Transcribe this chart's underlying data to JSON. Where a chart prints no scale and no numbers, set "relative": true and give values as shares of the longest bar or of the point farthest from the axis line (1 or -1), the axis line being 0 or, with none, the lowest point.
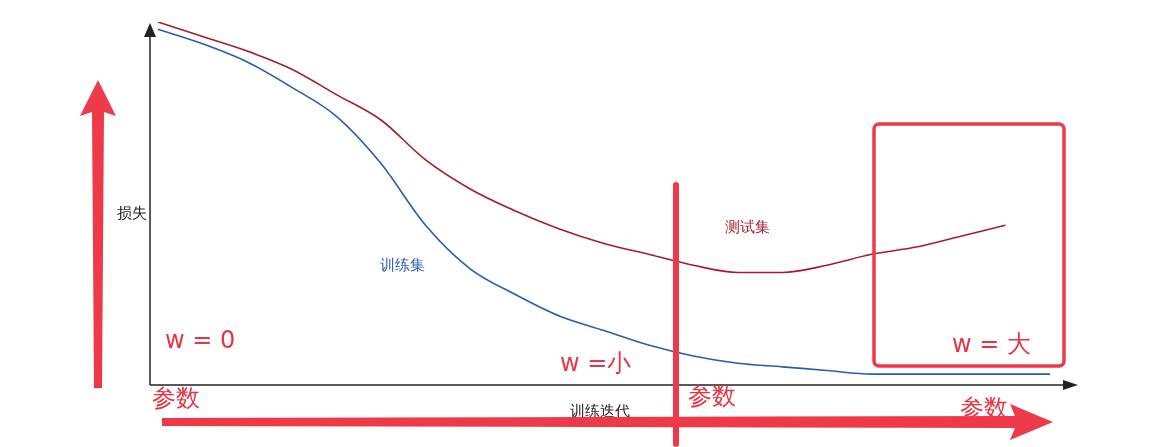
{
  "chart_data": {
    "type": "line",
    "relative": true,
    "xlabel": "训练迭代",
    "ylabel": "损失",
    "categories": [
      null,
      null,
      null,
      null,
      null,
      null,
      null,
      null,
      null,
      null,
      null,
      null,
      null,
      null,
      null,
      null,
      null,
      null,
      null,
      null,
      null
    ],
    "series": [
      {
        "name": "测试集",
        "color": "#a51d2d",
        "values": [
          1,
          0.96,
          0.92,
          0.87,
          0.8,
          0.73,
          0.62,
          0.54,
          0.48,
          0.43,
          0.39,
          0.36,
          0.33,
          0.31,
          0.31,
          0.33,
          0.36,
          0.38,
          0.41,
          0.44,
          null
        ]
      },
      {
        "name": "训练集",
        "color": "#2a5db0",
        "values": [
          0.98,
          0.94,
          0.89,
          0.82,
          0.74,
          0.61,
          0.44,
          0.32,
          0.25,
          0.19,
          0.15,
          0.11,
          0.08,
          0.06,
          0.05,
          0.04,
          0.03,
          0.03,
          0.03,
          0.03,
          0.03
        ]
      }
    ],
    "annotations": [
      "w = 0",
      "参数",
      "w =小",
      "参数",
      "w = 大",
      "参数"
    ],
    "legend": false,
    "marker": "none",
    "line_style": "solid"
  }
}
